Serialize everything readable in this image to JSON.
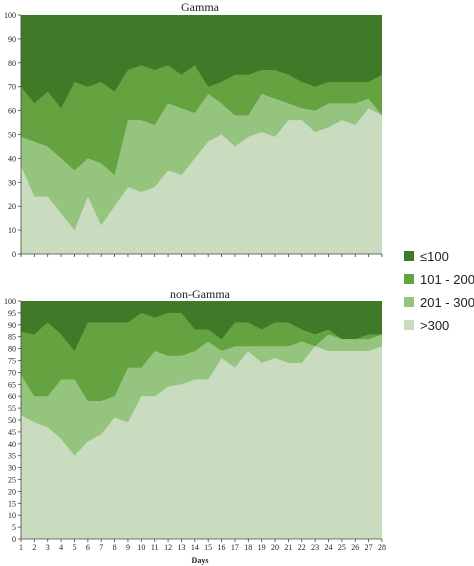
{
  "chart_data": [
    {
      "type": "area",
      "title": "Gamma",
      "xlabel": "",
      "ylabel": "",
      "ylim": [
        0,
        100
      ],
      "yticks": [
        0,
        10,
        20,
        30,
        40,
        50,
        60,
        70,
        80,
        90,
        100
      ],
      "x": [
        1,
        2,
        3,
        4,
        5,
        6,
        7,
        8,
        9,
        10,
        11,
        12,
        13,
        14,
        15,
        16,
        17,
        18,
        19,
        20,
        21,
        22,
        23,
        24,
        25,
        26,
        27,
        28
      ],
      "stacking": "cumulative",
      "series": [
        {
          "name": ">300",
          "color": "#c9dcbf",
          "values": [
            37,
            24,
            24,
            17,
            10,
            24,
            12,
            20,
            28,
            26,
            28,
            35,
            33,
            40,
            47,
            50,
            45,
            49,
            51,
            49,
            56,
            56,
            51,
            53,
            56,
            54,
            61,
            58
          ]
        },
        {
          "name": "201 - 300",
          "color": "#95c47f",
          "values": [
            49,
            47,
            45,
            40,
            35,
            40,
            38,
            33,
            56,
            56,
            54,
            63,
            61,
            59,
            67,
            63,
            58,
            58,
            67,
            65,
            63,
            61,
            60,
            63,
            63,
            63,
            65,
            58
          ]
        },
        {
          "name": "101 - 200",
          "color": "#64a33f",
          "values": [
            70,
            63,
            68,
            61,
            72,
            70,
            72,
            68,
            77,
            79,
            77,
            79,
            75,
            79,
            70,
            72,
            75,
            75,
            77,
            77,
            75,
            72,
            70,
            72,
            72,
            72,
            72,
            75
          ]
        },
        {
          "name": "≤100",
          "color": "#3f7a29",
          "values": [
            100,
            100,
            100,
            100,
            100,
            100,
            100,
            100,
            100,
            100,
            100,
            100,
            100,
            100,
            100,
            100,
            100,
            100,
            100,
            100,
            100,
            100,
            100,
            100,
            100,
            100,
            100,
            100
          ]
        }
      ]
    },
    {
      "type": "area",
      "title": "non-Gamma",
      "xlabel": "Days",
      "ylabel": "",
      "ylim": [
        0,
        100
      ],
      "yticks": [
        0,
        5,
        10,
        15,
        20,
        25,
        30,
        35,
        40,
        45,
        50,
        55,
        60,
        65,
        70,
        75,
        80,
        85,
        90,
        95,
        100
      ],
      "x": [
        1,
        2,
        3,
        4,
        5,
        6,
        7,
        8,
        9,
        10,
        11,
        12,
        13,
        14,
        15,
        16,
        17,
        18,
        19,
        20,
        21,
        22,
        23,
        24,
        25,
        26,
        27,
        28
      ],
      "stacking": "cumulative",
      "series": [
        {
          "name": ">300",
          "color": "#c9dcbf",
          "values": [
            52,
            49,
            47,
            42,
            35,
            41,
            44,
            51,
            49,
            60,
            60,
            64,
            65,
            67,
            67,
            76,
            72,
            79,
            74,
            76,
            74,
            74,
            81,
            79,
            79,
            79,
            79,
            81
          ]
        },
        {
          "name": "201 - 300",
          "color": "#95c47f",
          "values": [
            69,
            60,
            60,
            67,
            67,
            58,
            58,
            60,
            72,
            72,
            79,
            77,
            77,
            79,
            83,
            79,
            81,
            81,
            81,
            81,
            81,
            83,
            81,
            86,
            84,
            84,
            84,
            86
          ]
        },
        {
          "name": "101 - 200",
          "color": "#64a33f",
          "values": [
            87,
            86,
            91,
            86,
            79,
            91,
            91,
            91,
            91,
            95,
            93,
            95,
            95,
            88,
            88,
            84,
            91,
            91,
            88,
            91,
            91,
            88,
            86,
            88,
            84,
            84,
            86,
            86
          ]
        },
        {
          "name": "≤100",
          "color": "#3f7a29",
          "values": [
            100,
            100,
            100,
            100,
            100,
            100,
            100,
            100,
            100,
            100,
            100,
            100,
            100,
            100,
            100,
            100,
            100,
            100,
            100,
            100,
            100,
            100,
            100,
            100,
            100,
            100,
            100,
            100
          ]
        }
      ]
    }
  ],
  "legend": {
    "placement": "right",
    "items": [
      {
        "label": "≤100",
        "color": "#3f7a29"
      },
      {
        "label": "101 - 200",
        "color": "#64a33f"
      },
      {
        "label": "201 - 300",
        "color": "#95c47f"
      },
      {
        "label": ">300",
        "color": "#c9dcbf"
      }
    ]
  }
}
